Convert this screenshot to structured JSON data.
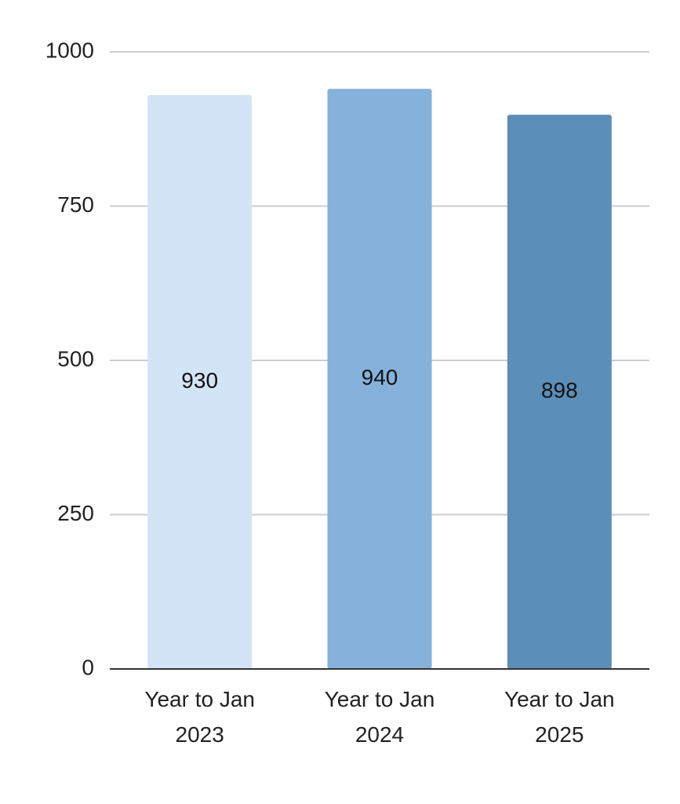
{
  "chart_data": {
    "type": "bar",
    "categories": [
      "Year to Jan 2023",
      "Year to Jan 2024",
      "Year to Jan 2025"
    ],
    "values": [
      930,
      940,
      898
    ],
    "colors": [
      "#d3e4f7",
      "#85b1db",
      "#5b8fb9"
    ],
    "ylim": [
      0,
      1000
    ],
    "yticks": [
      0,
      250,
      500,
      750,
      1000
    ],
    "grid": true
  }
}
